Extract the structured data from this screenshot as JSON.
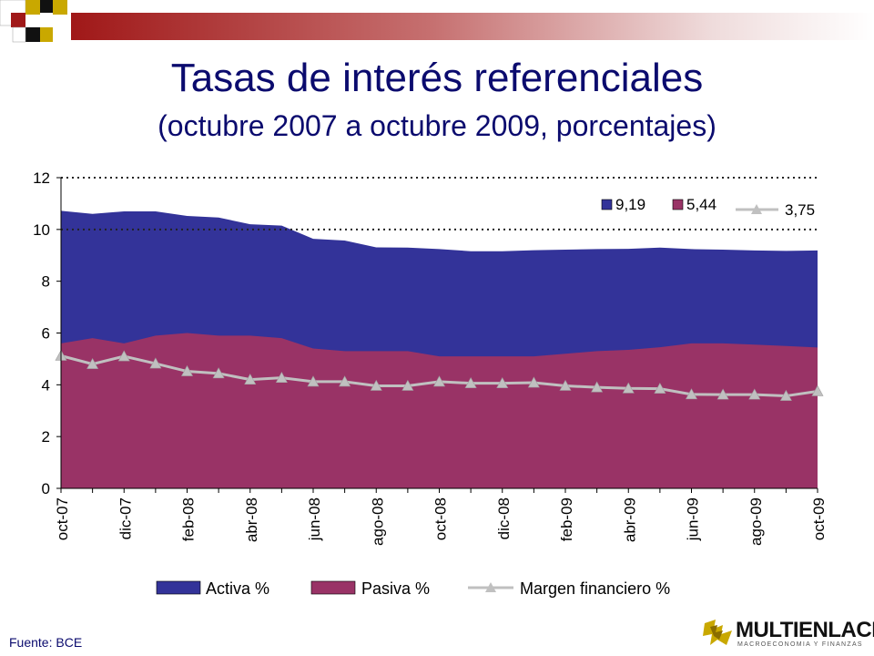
{
  "header": {
    "title": "Tasas de interés referenciales",
    "subtitle": "(octubre 2007 a octubre 2009, porcentajes)"
  },
  "footer": {
    "source": "Fuente: BCE",
    "logo_name": "MULTIENLACE",
    "logo_tagline": "MACROECONOMIA Y FINANZAS"
  },
  "colors": {
    "activa": "#333399",
    "pasiva": "#993366",
    "margen": "#c0c0c0",
    "title": "#0b0b6e"
  },
  "chart_data": {
    "type": "area",
    "x": [
      "oct-07",
      "nov-07",
      "dic-07",
      "ene-08",
      "feb-08",
      "mar-08",
      "abr-08",
      "may-08",
      "jun-08",
      "jul-08",
      "ago-08",
      "sep-08",
      "oct-08",
      "nov-08",
      "dic-08",
      "ene-09",
      "feb-09",
      "mar-09",
      "abr-09",
      "may-09",
      "jun-09",
      "jul-09",
      "ago-09",
      "sep-09",
      "oct-09"
    ],
    "x_tick_labels": [
      "oct-07",
      "dic-07",
      "feb-08",
      "abr-08",
      "jun-08",
      "ago-08",
      "oct-08",
      "dic-08",
      "feb-09",
      "abr-09",
      "jun-09",
      "ago-09",
      "oct-09"
    ],
    "series": [
      {
        "name": "Activa %",
        "kind": "area",
        "values": [
          10.72,
          10.6,
          10.7,
          10.7,
          10.52,
          10.46,
          10.2,
          10.15,
          9.64,
          9.57,
          9.31,
          9.3,
          9.24,
          9.16,
          9.16,
          9.2,
          9.22,
          9.24,
          9.25,
          9.3,
          9.24,
          9.22,
          9.19,
          9.17,
          9.19
        ]
      },
      {
        "name": "Pasiva %",
        "kind": "area",
        "values": [
          5.6,
          5.8,
          5.6,
          5.9,
          6.0,
          5.9,
          5.9,
          5.8,
          5.4,
          5.3,
          5.3,
          5.3,
          5.1,
          5.1,
          5.1,
          5.1,
          5.2,
          5.3,
          5.35,
          5.45,
          5.6,
          5.6,
          5.55,
          5.5,
          5.44
        ]
      },
      {
        "name": "Margen financiero %",
        "kind": "line",
        "values": [
          5.12,
          4.8,
          5.1,
          4.82,
          4.52,
          4.44,
          4.2,
          4.27,
          4.12,
          4.12,
          3.96,
          3.96,
          4.12,
          4.06,
          4.06,
          4.08,
          3.96,
          3.9,
          3.86,
          3.85,
          3.63,
          3.62,
          3.62,
          3.57,
          3.75
        ]
      }
    ],
    "annotations": [
      "9,19",
      "5,44",
      "3,75"
    ],
    "ylim": [
      0,
      12
    ],
    "y_ticks": [
      "0",
      "2",
      "4",
      "6",
      "8",
      "10",
      "12"
    ],
    "legend_position": "bottom",
    "grid": "dotted lines at 10 and 12"
  }
}
